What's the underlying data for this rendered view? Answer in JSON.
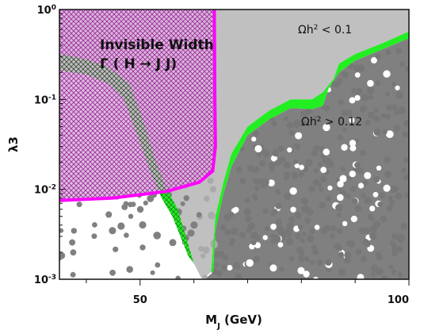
{
  "chart_data": {
    "type": "scatter",
    "title": "",
    "xlabel": "M",
    "xlabel_sub": "J",
    "xlabel_unit": " (GeV)",
    "ylabel": "λ3",
    "xlim": [
      35,
      100
    ],
    "ylim": [
      0.001,
      1
    ],
    "yscale": "log",
    "x_ticks": [
      {
        "value": 50,
        "label": "50"
      },
      {
        "value": 100,
        "label": "100"
      }
    ],
    "y_ticks": [
      {
        "value": 1,
        "base": "10",
        "exp": "0"
      },
      {
        "value": 0.1,
        "base": "10",
        "exp": "-1"
      },
      {
        "value": 0.01,
        "base": "10",
        "exp": "-2"
      },
      {
        "value": 0.001,
        "base": "10",
        "exp": "-3"
      }
    ],
    "annotations": {
      "under_abundant": {
        "pre": "Ωh",
        "sup": "2",
        "post": " < 0.1"
      },
      "over_abundant": {
        "pre": "Ωh",
        "sup": "2",
        "post": " > 0.12"
      },
      "invisible_title": "Invisible Width",
      "invisible_formula": "Γ ( H → J J)"
    },
    "regions": {
      "under_abundant_color": "#c0c0c0",
      "over_abundant_color": "#808080",
      "relic_band_color": "#22ee22",
      "invisible_width_color": "#ff00ff",
      "invisible_fill": "#dcb4dc"
    },
    "relic_band_upper": [
      [
        35,
        0.32
      ],
      [
        40,
        0.28
      ],
      [
        44,
        0.23
      ],
      [
        48,
        0.15
      ],
      [
        50.5,
        0.06
      ],
      [
        53,
        0.02
      ],
      [
        55,
        0.01
      ],
      [
        57,
        0.006
      ],
      [
        60,
        0.0015
      ]
    ],
    "relic_band_lower": [
      [
        35,
        0.21
      ],
      [
        40,
        0.19
      ],
      [
        44,
        0.15
      ],
      [
        47,
        0.1
      ],
      [
        49.5,
        0.04
      ],
      [
        52,
        0.015
      ],
      [
        54,
        0.008
      ],
      [
        56,
        0.005
      ],
      [
        59,
        0.0018
      ]
    ],
    "relic_band_right_outer": [
      [
        63.2,
        0.0012
      ],
      [
        64,
        0.005
      ],
      [
        65.5,
        0.012
      ],
      [
        67,
        0.025
      ],
      [
        70,
        0.05
      ],
      [
        74,
        0.075
      ],
      [
        78,
        0.1
      ],
      [
        82,
        0.1
      ],
      [
        84,
        0.12
      ],
      [
        86,
        0.17
      ],
      [
        87,
        0.25
      ],
      [
        90,
        0.32
      ],
      [
        95,
        0.42
      ],
      [
        100,
        0.57
      ]
    ],
    "relic_band_right_inner": [
      [
        100,
        0.48
      ],
      [
        95,
        0.36
      ],
      [
        90,
        0.27
      ],
      [
        87,
        0.2
      ],
      [
        85,
        0.13
      ],
      [
        84,
        0.085
      ],
      [
        82,
        0.078
      ],
      [
        78,
        0.08
      ],
      [
        74,
        0.06
      ],
      [
        70,
        0.04
      ],
      [
        67,
        0.018
      ],
      [
        65.5,
        0.009
      ],
      [
        64,
        0.0035
      ],
      [
        63.6,
        0.0012
      ]
    ],
    "invisible_width_boundary": [
      [
        35,
        0.0075
      ],
      [
        45,
        0.008
      ],
      [
        55,
        0.0095
      ],
      [
        61,
        0.012
      ],
      [
        63.5,
        0.016
      ],
      [
        64,
        0.03
      ],
      [
        63.9,
        0.1
      ],
      [
        63.8,
        1
      ]
    ]
  }
}
